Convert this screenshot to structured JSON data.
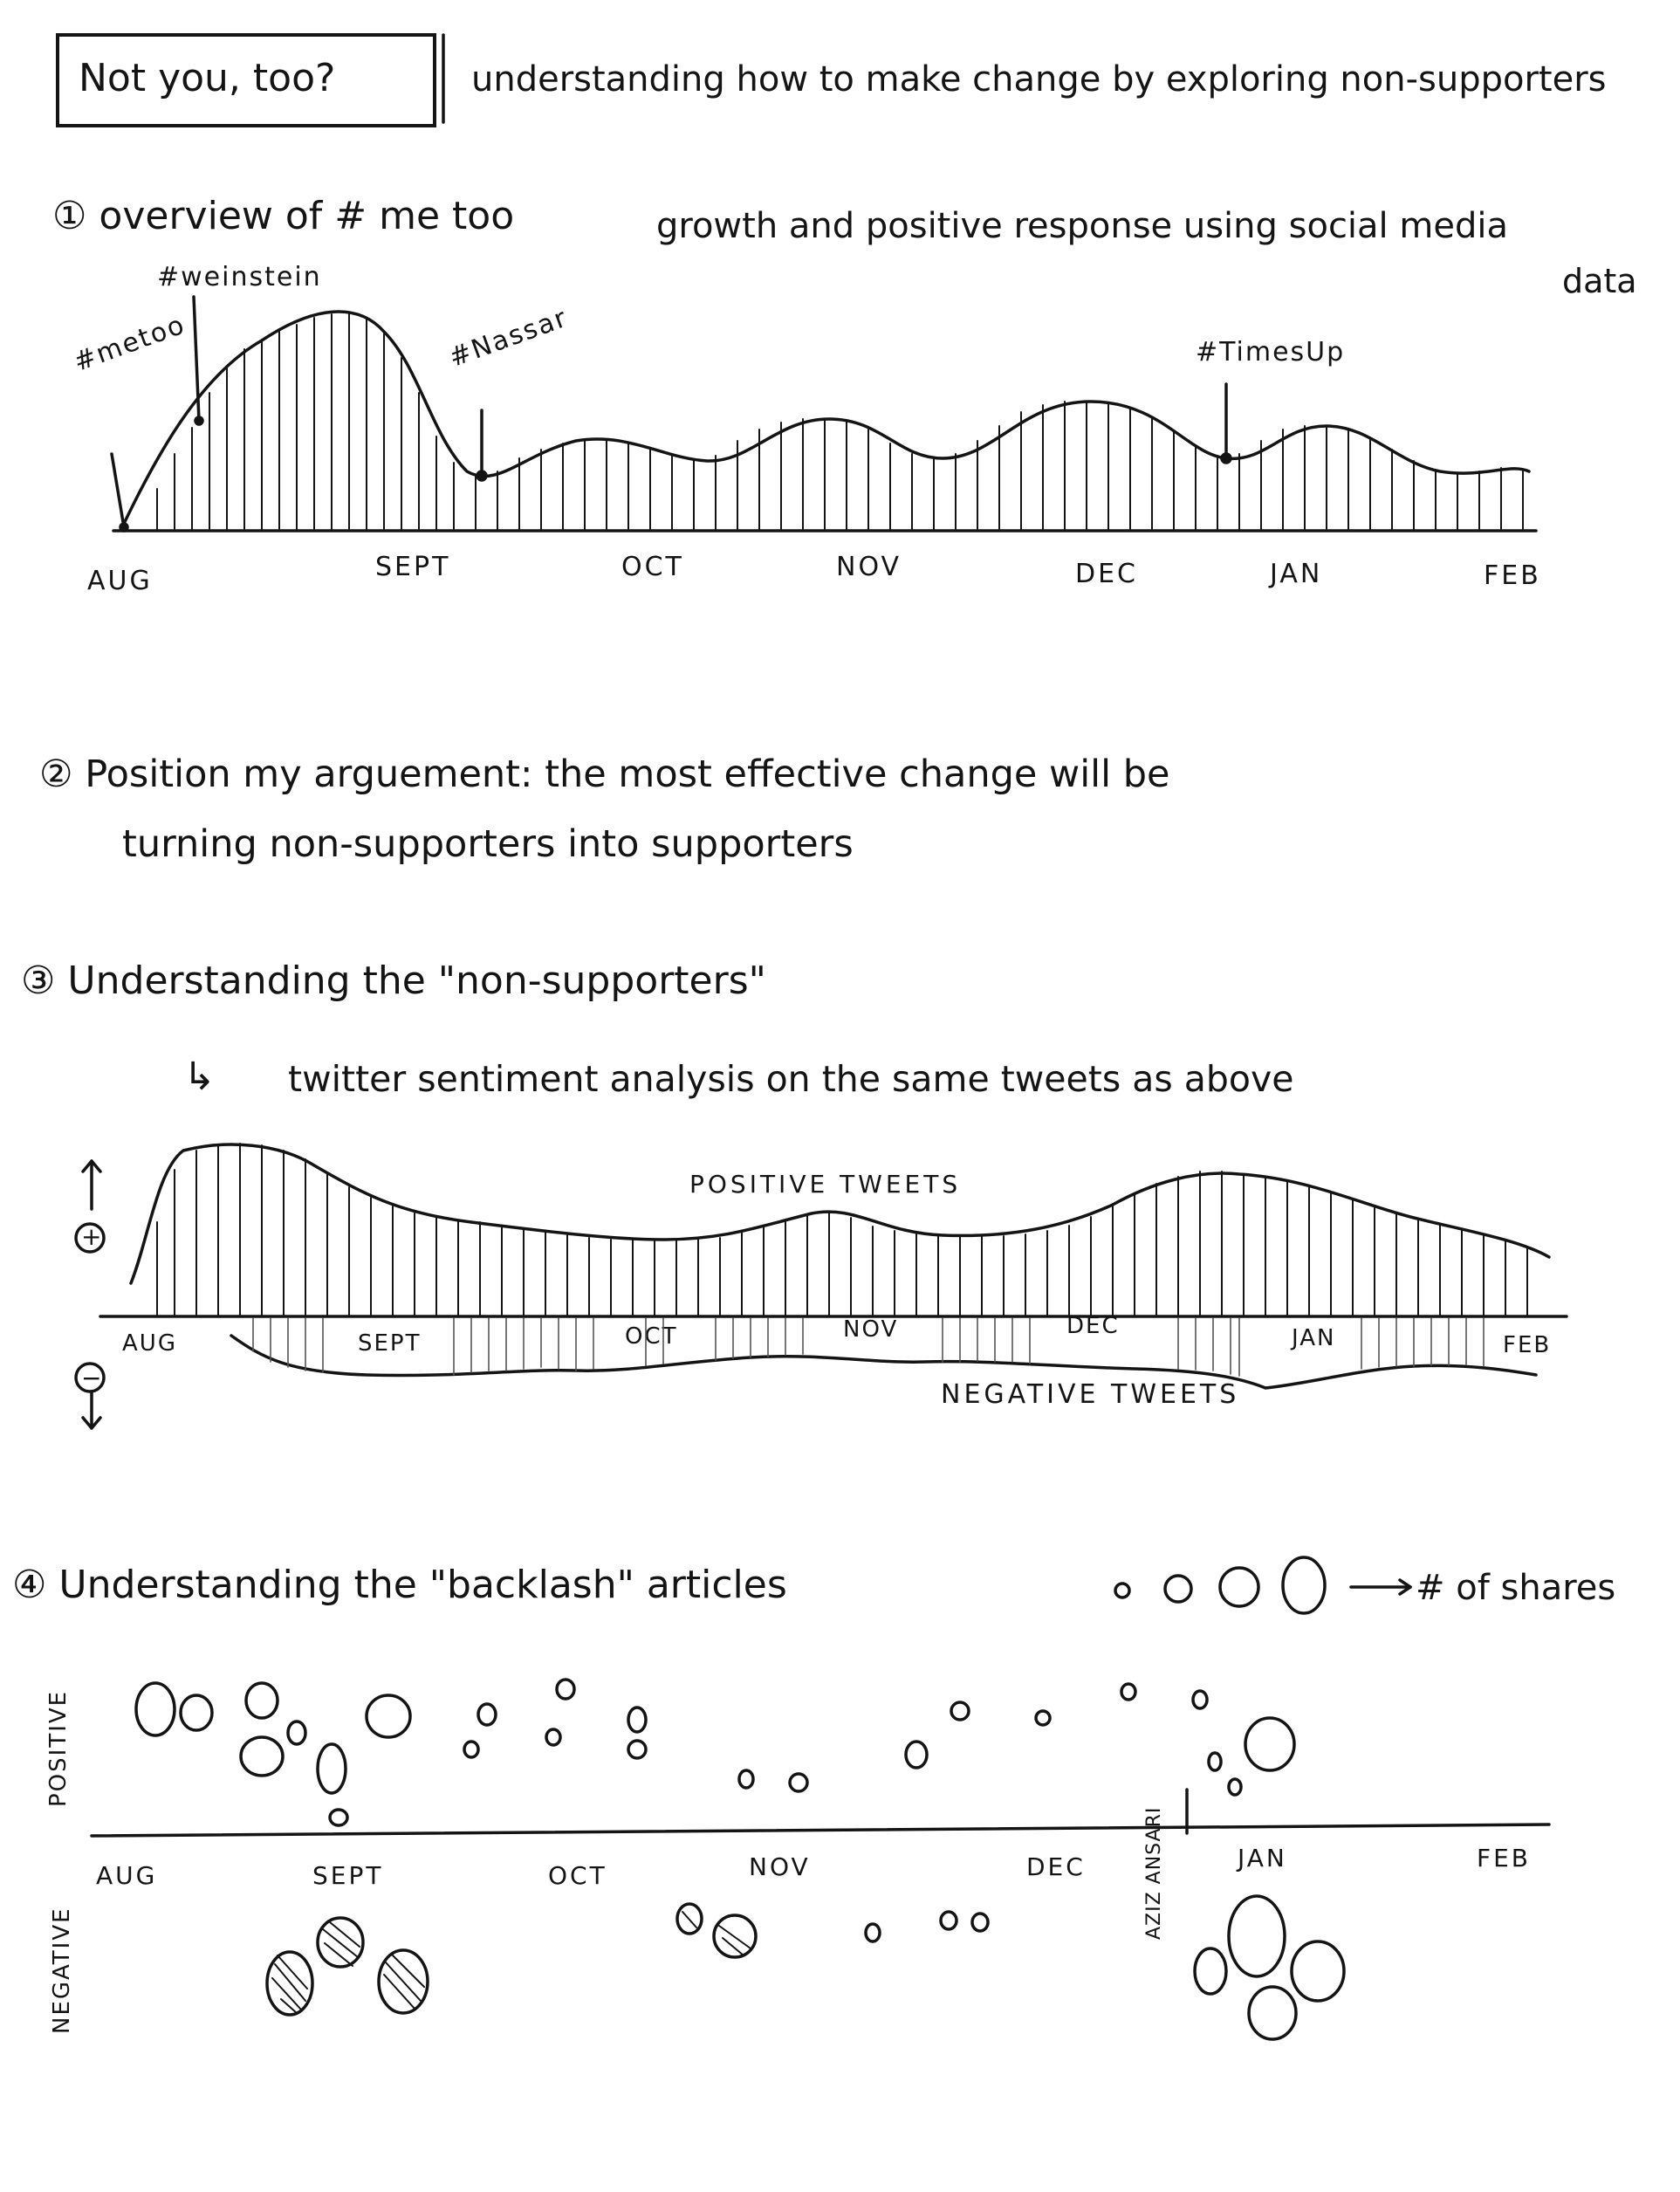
{
  "title": {
    "boxed": "Not you, too?",
    "subtitle": "understanding how to make change by exploring non-supporters"
  },
  "section1": {
    "heading": "① overview of # me too",
    "heading_rest": "growth and positive response using social media",
    "heading_end": "data",
    "labels": {
      "metoo": "#metoo",
      "weinstein": "#weinstein",
      "nassar": "#Nassar",
      "timesup": "#TimesUp"
    },
    "months": [
      "AUG",
      "SEPT",
      "OCT",
      "NOV",
      "DEC",
      "JAN",
      "FEB"
    ]
  },
  "section2": {
    "line1": "② Position my arguement: the most effective change will be",
    "line2": "turning non-supporters into supporters"
  },
  "section3": {
    "heading": "③ Understanding the \"non-supporters\"",
    "sub": "twitter sentiment analysis on the same tweets as above",
    "positive_label": "POSITIVE TWEETS",
    "negative_label": "NEGATIVE TWEETS",
    "plus": "+",
    "minus": "−",
    "months": [
      "AUG",
      "SEPT",
      "OCT",
      "NOV",
      "DEC",
      "JAN",
      "FEB"
    ]
  },
  "section4": {
    "heading": "④ Understanding the \"backlash\" articles",
    "legend_text": "# of shares",
    "axis_positive": "POSITIVE",
    "axis_negative": "NEGATIVE",
    "aziz_label": "AZIZ ANSARI",
    "months": [
      "AUG",
      "SEPT",
      "OCT",
      "NOV",
      "DEC",
      "JAN",
      "FEB"
    ]
  },
  "colors": {
    "ink": "#141414",
    "paper": "#ffffff"
  }
}
